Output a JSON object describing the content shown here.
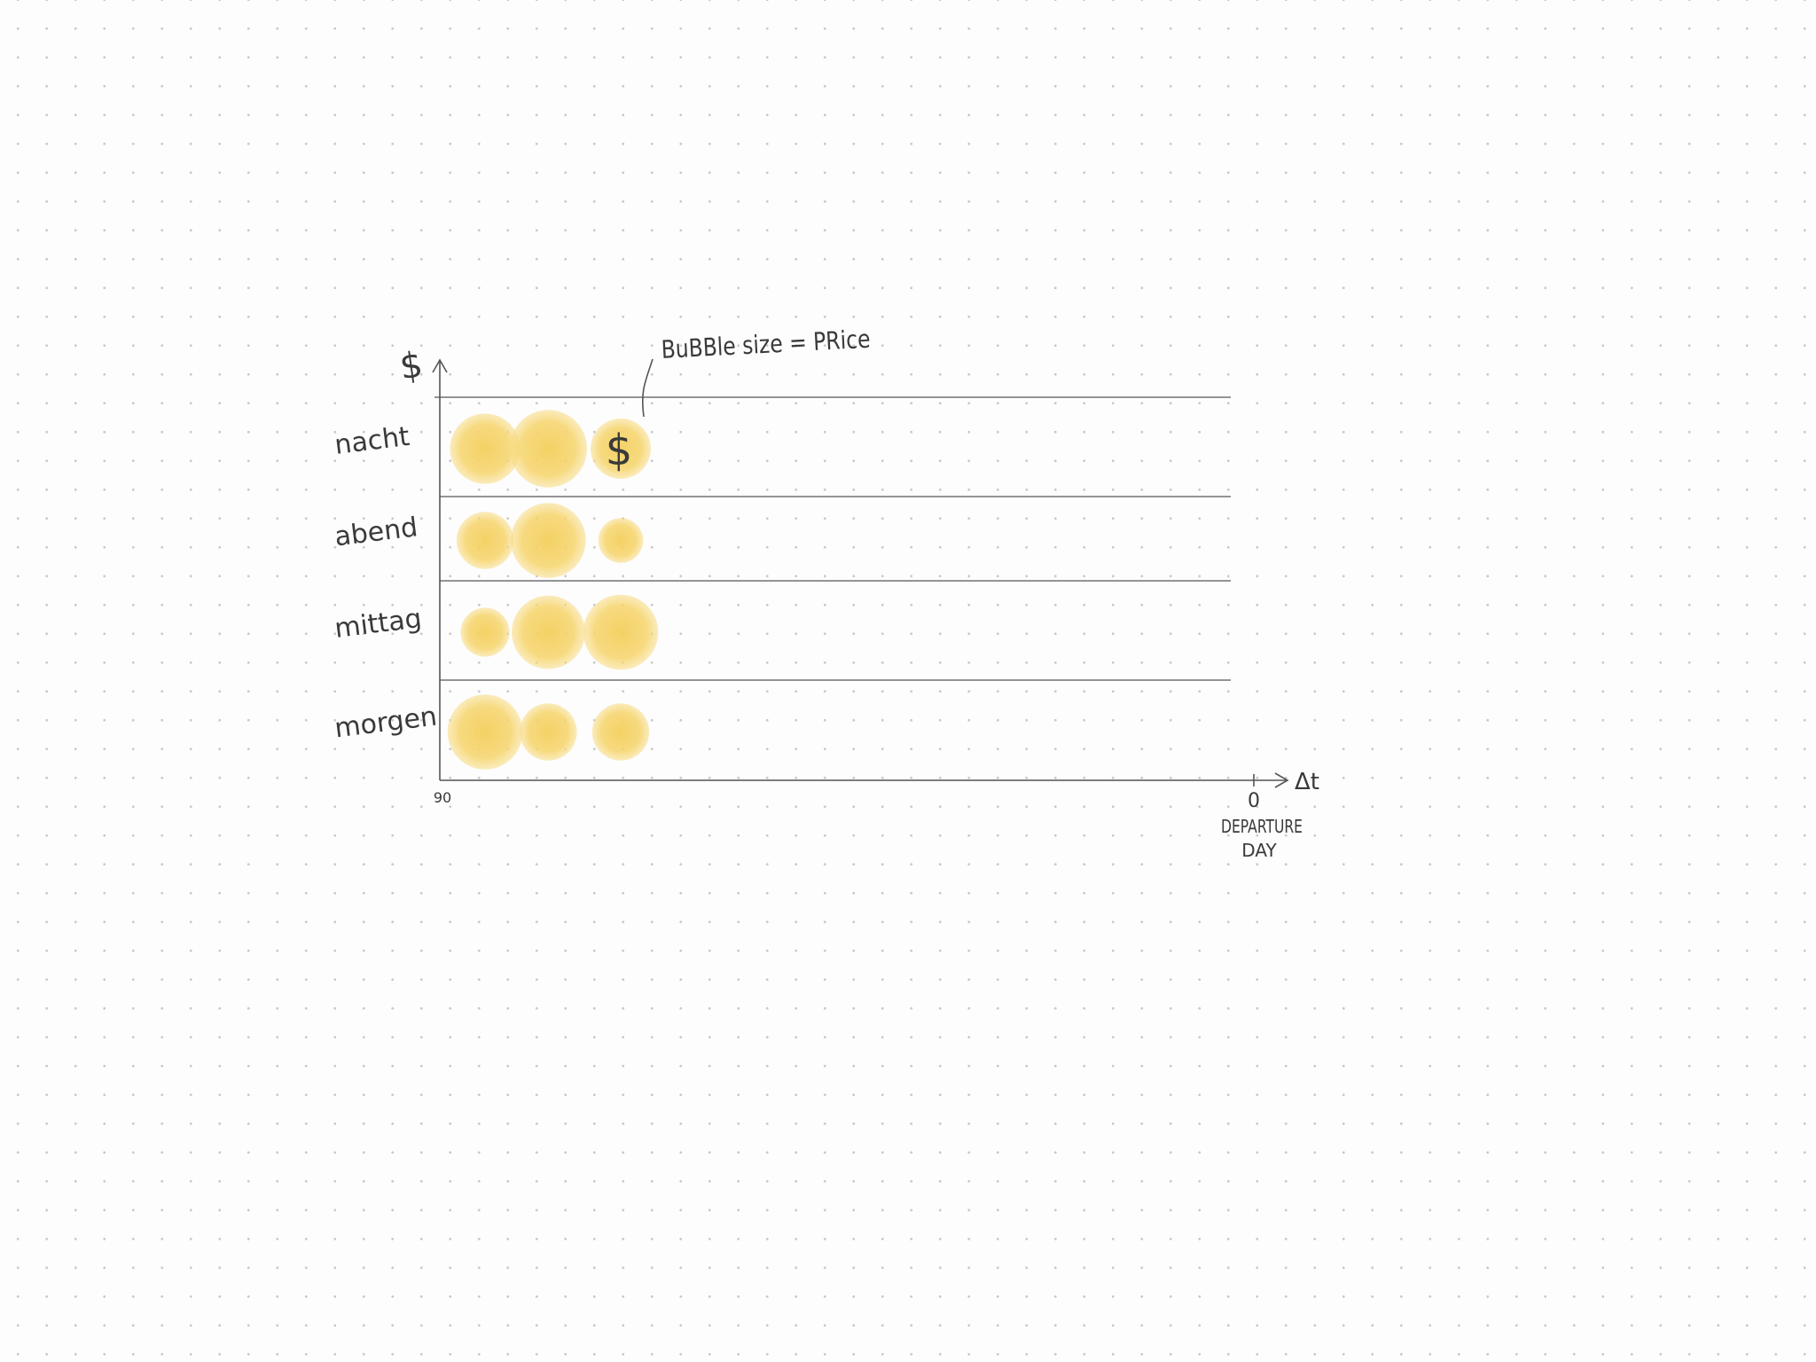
{
  "chart_data": {
    "type": "scatter",
    "encoding": "bubble size = price",
    "title": "",
    "annotation": "BuBBle size = PRice",
    "ylabel": "$",
    "xlabel": "Δt",
    "x_axis": {
      "start_label": "90",
      "end_label": "0",
      "end_caption_line1": "DEPARTURE",
      "end_caption_line2": "DAY"
    },
    "categories": [
      "nacht",
      "abend",
      "mittag",
      "morgen"
    ],
    "bubble_marker_label": "$",
    "bubble_color": "#f6d46a",
    "line_color": "#555555",
    "rows": [
      {
        "category": "nacht",
        "bubbles": [
          {
            "x": 85,
            "size": 0.86
          },
          {
            "x": 78,
            "size": 0.95
          },
          {
            "x": 70,
            "size": 0.74
          }
        ]
      },
      {
        "category": "abend",
        "bubbles": [
          {
            "x": 85,
            "size": 0.7
          },
          {
            "x": 78,
            "size": 0.92
          },
          {
            "x": 70,
            "size": 0.55
          }
        ]
      },
      {
        "category": "mittag",
        "bubbles": [
          {
            "x": 85,
            "size": 0.6
          },
          {
            "x": 78,
            "size": 0.9
          },
          {
            "x": 70,
            "size": 0.92
          }
        ]
      },
      {
        "category": "morgen",
        "bubbles": [
          {
            "x": 85,
            "size": 0.92
          },
          {
            "x": 78,
            "size": 0.7
          },
          {
            "x": 70,
            "size": 0.7
          }
        ]
      }
    ],
    "xlim": [
      90,
      0
    ],
    "grid": true,
    "legend": "none"
  }
}
